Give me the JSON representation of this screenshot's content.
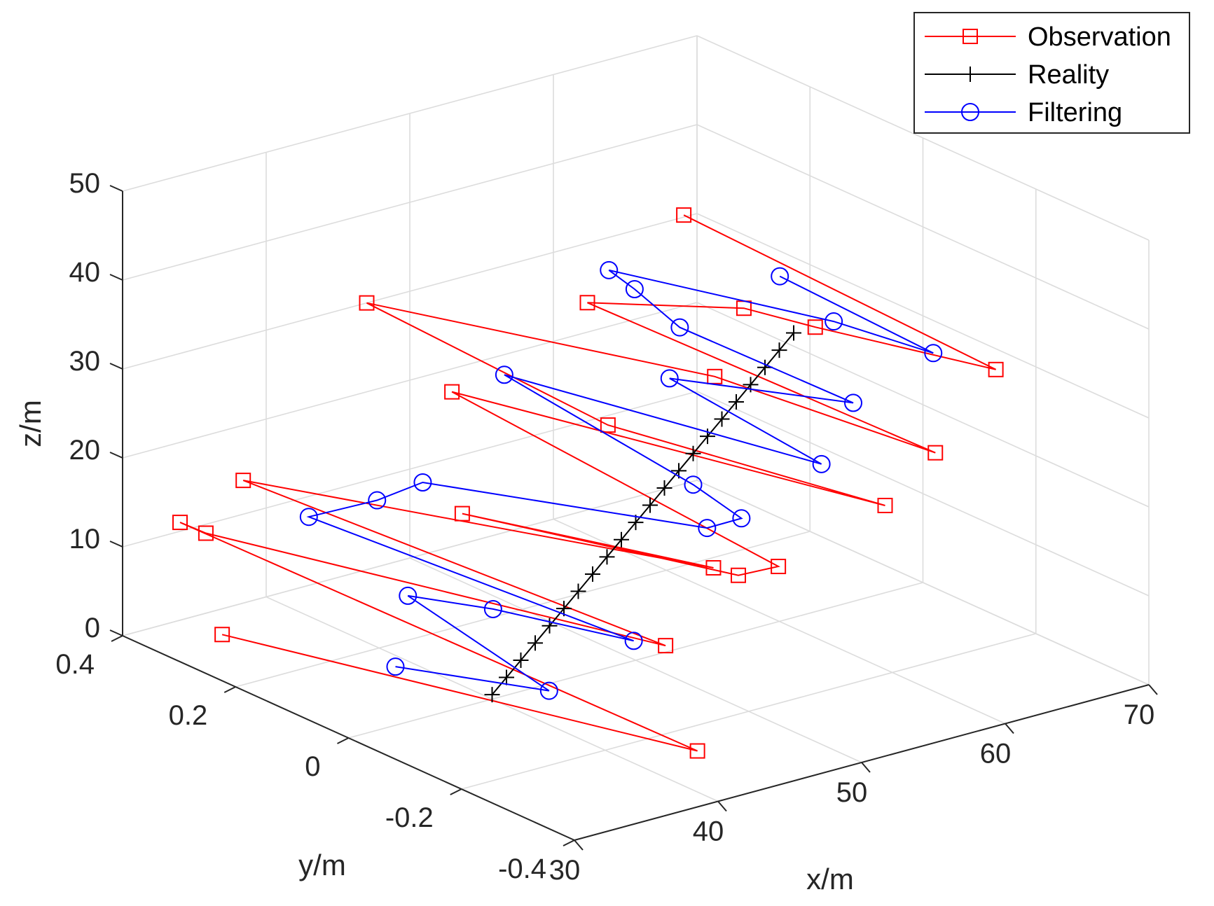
{
  "chart_data": {
    "type": "line3d",
    "title": "",
    "xlabel": "x/m",
    "ylabel": "y/m",
    "zlabel": "z/m",
    "xlim": [
      30,
      70
    ],
    "ylim": [
      -0.4,
      0.4
    ],
    "zlim": [
      0,
      50
    ],
    "x_ticks": [
      "30",
      "40",
      "50",
      "60",
      "70"
    ],
    "y_ticks": [
      "-0.4",
      "-0.2",
      "0",
      "0.2",
      "0.4"
    ],
    "z_ticks": [
      "0",
      "10",
      "20",
      "30",
      "40",
      "50"
    ],
    "grid": true,
    "legend_position": "top-right",
    "series": [
      {
        "name": "Observation",
        "color": "#ff0000",
        "marker": "square",
        "points": [
          {
            "x": 33.0,
            "y": 0.3,
            "z": 1.7
          },
          {
            "x": 42.5,
            "y": -0.3,
            "z": 1.7
          },
          {
            "x": 34.0,
            "y": 0.4,
            "z": 11.0
          },
          {
            "x": 35.8,
            "y": 0.4,
            "z": 9.0
          },
          {
            "x": 45.0,
            "y": -0.18,
            "z": 9.0
          },
          {
            "x": 38.4,
            "y": 0.4,
            "z": 13.8
          },
          {
            "x": 50.3,
            "y": -0.13,
            "z": 14.0
          },
          {
            "x": 45.0,
            "y": 0.18,
            "z": 13.5
          },
          {
            "x": 54.0,
            "y": -0.08,
            "z": 10.1
          },
          {
            "x": 56.0,
            "y": -0.1,
            "z": 10.8
          },
          {
            "x": 49.0,
            "y": 0.3,
            "z": 22.0
          },
          {
            "x": 59.5,
            "y": -0.2,
            "z": 19.0
          },
          {
            "x": 52.0,
            "y": 0.1,
            "z": 22.7
          },
          {
            "x": 47.0,
            "y": 0.4,
            "z": 30.0
          },
          {
            "x": 55.5,
            "y": 0.0,
            "z": 29.5
          },
          {
            "x": 63.0,
            "y": -0.2,
            "z": 23.4
          },
          {
            "x": 54.5,
            "y": 0.2,
            "z": 32.5
          },
          {
            "x": 59.5,
            "y": 0.05,
            "z": 34.0
          },
          {
            "x": 62.5,
            "y": 0.0,
            "z": 32.0
          },
          {
            "x": 68.0,
            "y": -0.18,
            "z": 30.0
          },
          {
            "x": 62.0,
            "y": 0.22,
            "z": 38.5
          }
        ]
      },
      {
        "name": "Reality",
        "color": "#000000",
        "marker": "plus",
        "points": [
          {
            "x": 40,
            "y": 0,
            "z": 0.5
          },
          {
            "x": 41,
            "y": 0,
            "z": 2.0
          },
          {
            "x": 42,
            "y": 0,
            "z": 3.5
          },
          {
            "x": 43,
            "y": 0,
            "z": 5.0
          },
          {
            "x": 44,
            "y": 0,
            "z": 6.5
          },
          {
            "x": 45,
            "y": 0,
            "z": 8.0
          },
          {
            "x": 46,
            "y": 0,
            "z": 9.5
          },
          {
            "x": 47,
            "y": 0,
            "z": 11.0
          },
          {
            "x": 48,
            "y": 0,
            "z": 12.5
          },
          {
            "x": 49,
            "y": 0,
            "z": 14.0
          },
          {
            "x": 50,
            "y": 0,
            "z": 15.5
          },
          {
            "x": 51,
            "y": 0,
            "z": 17.0
          },
          {
            "x": 52,
            "y": 0,
            "z": 18.5
          },
          {
            "x": 53,
            "y": 0,
            "z": 20.0
          },
          {
            "x": 54,
            "y": 0,
            "z": 21.5
          },
          {
            "x": 55,
            "y": 0,
            "z": 23.0
          },
          {
            "x": 56,
            "y": 0,
            "z": 24.5
          },
          {
            "x": 57,
            "y": 0,
            "z": 26.0
          },
          {
            "x": 58,
            "y": 0,
            "z": 27.5
          },
          {
            "x": 59,
            "y": 0,
            "z": 29.0
          },
          {
            "x": 60,
            "y": 0,
            "z": 30.5
          },
          {
            "x": 61,
            "y": 0,
            "z": 32.0
          }
        ]
      },
      {
        "name": "Filtering",
        "color": "#0000ff",
        "marker": "circle",
        "points": [
          {
            "x": 37.2,
            "y": 0.1,
            "z": 2.0
          },
          {
            "x": 42.0,
            "y": -0.05,
            "z": 1.5
          },
          {
            "x": 42.0,
            "y": 0.2,
            "z": 5.0
          },
          {
            "x": 44.0,
            "y": 0.1,
            "z": 5.5
          },
          {
            "x": 47.5,
            "y": -0.06,
            "z": 5.0
          },
          {
            "x": 41.0,
            "y": 0.35,
            "z": 10.0
          },
          {
            "x": 43.0,
            "y": 0.28,
            "z": 13.0
          },
          {
            "x": 45.0,
            "y": 0.25,
            "z": 15.0
          },
          {
            "x": 53.0,
            "y": -0.05,
            "z": 15.0
          },
          {
            "x": 55.0,
            "y": -0.06,
            "z": 15.5
          },
          {
            "x": 54.0,
            "y": 0.0,
            "z": 18.0
          },
          {
            "x": 49.5,
            "y": 0.22,
            "z": 26.0
          },
          {
            "x": 59.0,
            "y": -0.1,
            "z": 21.0
          },
          {
            "x": 55.5,
            "y": 0.08,
            "z": 27.0
          },
          {
            "x": 62.0,
            "y": -0.08,
            "z": 26.0
          },
          {
            "x": 57.0,
            "y": 0.1,
            "z": 31.5
          },
          {
            "x": 57.0,
            "y": 0.18,
            "z": 33.5
          },
          {
            "x": 56.0,
            "y": 0.2,
            "z": 35.5
          },
          {
            "x": 63.0,
            "y": -0.02,
            "z": 33.0
          },
          {
            "x": 66.0,
            "y": -0.12,
            "z": 31.0
          },
          {
            "x": 62.0,
            "y": 0.05,
            "z": 36.5
          }
        ]
      }
    ]
  }
}
